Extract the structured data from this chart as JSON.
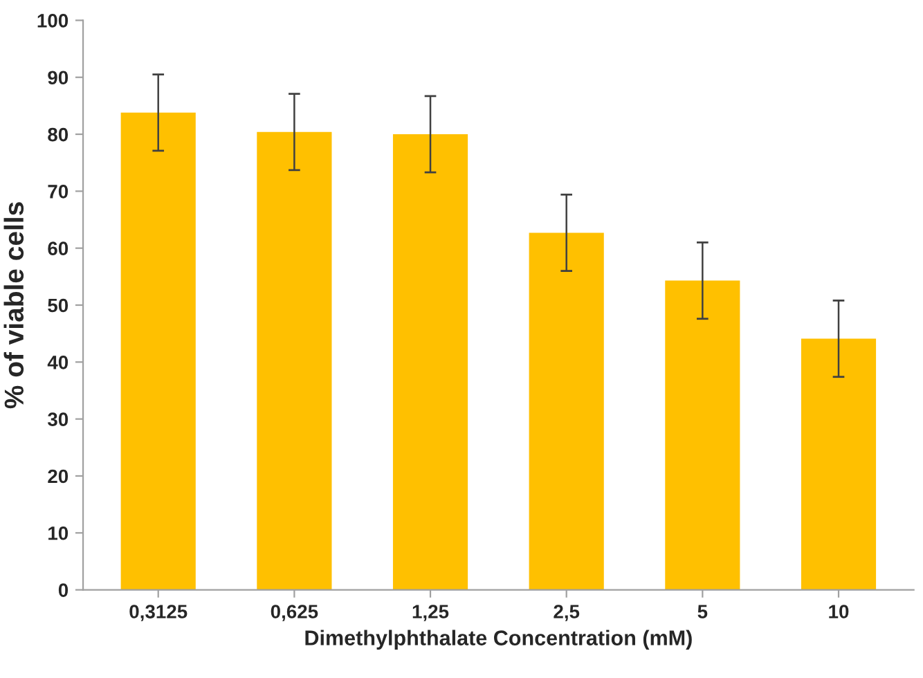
{
  "chart_data": {
    "type": "bar",
    "xlabel": "Dimethylphthalate Concentration (mM)",
    "ylabel": "% of viable cells",
    "categories": [
      "0,3125",
      "0,625",
      "1,25",
      "2,5",
      "5",
      "10"
    ],
    "values": [
      83.8,
      80.4,
      80.0,
      62.7,
      54.3,
      44.1
    ],
    "errors": [
      6.7,
      6.7,
      6.7,
      6.7,
      6.7,
      6.7
    ],
    "color": "#ffc000",
    "ylim": [
      0,
      100
    ],
    "yticks": [
      0,
      10,
      20,
      30,
      40,
      50,
      60,
      70,
      80,
      90,
      100
    ],
    "grid": false
  }
}
